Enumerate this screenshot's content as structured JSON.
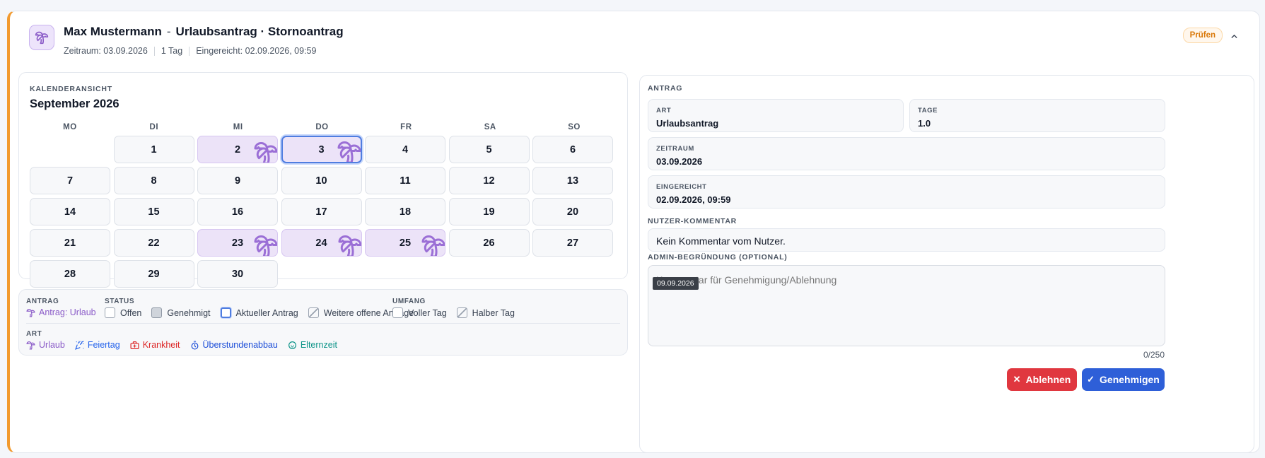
{
  "header": {
    "name": "Max Mustermann",
    "separator": "-",
    "request_title": "Urlaubsantrag · Stornoantrag",
    "period": "Zeitraum: 03.09.2026",
    "days": "1 Tag",
    "submitted": "Eingereicht: 02.09.2026, 09:59",
    "status_badge": "Prüfen",
    "avatar_icon": "palm-tree-icon",
    "collapse_icon": "chevron-up-icon"
  },
  "calendar": {
    "label": "KALENDERANSICHT",
    "month": "September 2026",
    "weekdays": [
      "MO",
      "DI",
      "MI",
      "DO",
      "FR",
      "SA",
      "SO"
    ],
    "days": [
      {
        "n": "",
        "type": "empty"
      },
      {
        "n": "1",
        "type": "normal"
      },
      {
        "n": "2",
        "type": "vacation"
      },
      {
        "n": "3",
        "type": "current"
      },
      {
        "n": "4",
        "type": "normal"
      },
      {
        "n": "5",
        "type": "normal"
      },
      {
        "n": "6",
        "type": "normal"
      },
      {
        "n": "7",
        "type": "normal"
      },
      {
        "n": "8",
        "type": "normal"
      },
      {
        "n": "9",
        "type": "normal"
      },
      {
        "n": "10",
        "type": "normal"
      },
      {
        "n": "11",
        "type": "normal"
      },
      {
        "n": "12",
        "type": "normal"
      },
      {
        "n": "13",
        "type": "normal"
      },
      {
        "n": "14",
        "type": "normal"
      },
      {
        "n": "15",
        "type": "normal"
      },
      {
        "n": "16",
        "type": "normal"
      },
      {
        "n": "17",
        "type": "normal"
      },
      {
        "n": "18",
        "type": "normal"
      },
      {
        "n": "19",
        "type": "normal"
      },
      {
        "n": "20",
        "type": "normal"
      },
      {
        "n": "21",
        "type": "normal"
      },
      {
        "n": "22",
        "type": "normal"
      },
      {
        "n": "23",
        "type": "vacation"
      },
      {
        "n": "24",
        "type": "vacation"
      },
      {
        "n": "25",
        "type": "vacation"
      },
      {
        "n": "26",
        "type": "normal"
      },
      {
        "n": "27",
        "type": "normal"
      },
      {
        "n": "28",
        "type": "normal"
      },
      {
        "n": "29",
        "type": "normal"
      },
      {
        "n": "30",
        "type": "normal"
      }
    ],
    "vacation_color": "#9b6fd6"
  },
  "legend": {
    "antrag_label": "ANTRAG",
    "antrag_item": "Antrag: Urlaub",
    "status_label": "STATUS",
    "status_items": [
      "Offen",
      "Genehmigt",
      "Aktueller Antrag",
      "Weitere offene Anträge"
    ],
    "umfang_label": "UMFANG",
    "umfang_items": [
      "Voller Tag",
      "Halber Tag"
    ],
    "art_label": "ART",
    "art_items": [
      {
        "label": "Urlaub",
        "color": "#8b5cc8",
        "icon": "palm-tree-icon"
      },
      {
        "label": "Feiertag",
        "color": "#2563eb",
        "icon": "party-popper-icon"
      },
      {
        "label": "Krankheit",
        "color": "#dc2626",
        "icon": "medical-bag-icon"
      },
      {
        "label": "Überstundenabbau",
        "color": "#1d4ed8",
        "icon": "stopwatch-icon"
      },
      {
        "label": "Elternzeit",
        "color": "#0d9488",
        "icon": "baby-icon"
      }
    ]
  },
  "antrag": {
    "section_label": "ANTRAG",
    "art_label": "ART",
    "art_value": "Urlaubsantrag",
    "tage_label": "TAGE",
    "tage_value": "1.0",
    "zeitraum_label": "ZEITRAUM",
    "zeitraum_value": "03.09.2026",
    "eingereicht_label": "EINGEREICHT",
    "eingereicht_value": "02.09.2026, 09:59",
    "comment_label": "NUTZER-KOMMENTAR",
    "comment_value": "Kein Kommentar vom Nutzer.",
    "admin_label": "ADMIN-BEGRÜNDUNG (OPTIONAL)",
    "admin_placeholder": "Kommentar für Genehmigung/Ablehnung",
    "tooltip": "09.09.2026",
    "counter": "0/250",
    "reject_label": "Ablehnen",
    "approve_label": "Genehmigen"
  }
}
